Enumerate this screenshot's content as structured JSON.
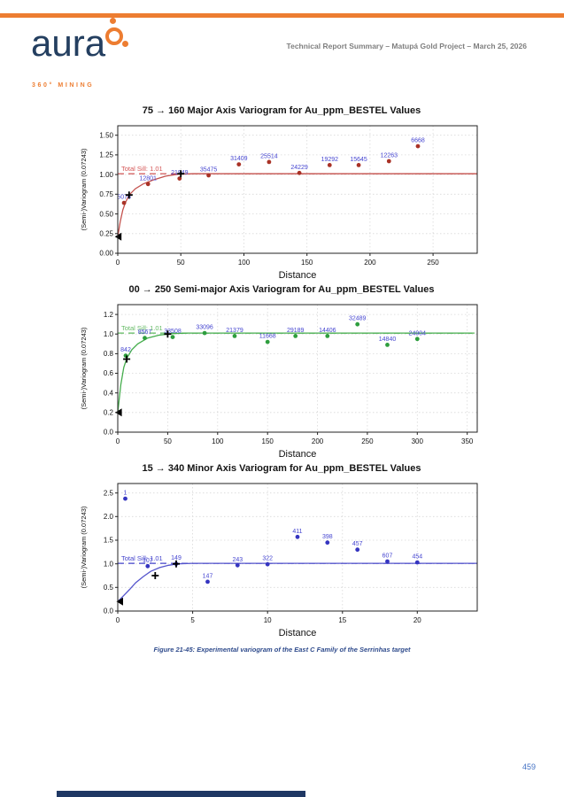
{
  "header": {
    "brand": "aura",
    "brand_sub": "360° MINING",
    "doc_title": "Technical Report Summary – Matupá Gold Project – March 25, 2026",
    "accent_color": "#ED7D31",
    "brand_color": "#243F60"
  },
  "chart_data": [
    {
      "type": "scatter",
      "title": "75 → 160 Major Axis Variogram for Au_ppm_BESTEL Values",
      "xlabel": "Distance",
      "ylabel": "(Semi-)Variogram (0.07243)",
      "xlim": [
        0,
        285
      ],
      "ylim": [
        0,
        1.62
      ],
      "xticks": [
        0,
        50,
        100,
        150,
        200,
        250
      ],
      "yticks": [
        0,
        0.25,
        0.5,
        0.75,
        1.0,
        1.25,
        1.5
      ],
      "ytick_labels": [
        "0.00",
        "0.25",
        "0.50",
        "0.75",
        "1.00",
        "1.25",
        "1.50"
      ],
      "grid": true,
      "sill": {
        "value": 1.01,
        "label": "Total Sill: 1.01"
      },
      "colors": {
        "point": "#A93226",
        "curve": "#C4524E",
        "sill_line": "#CC4444",
        "sill_text": "#D45555",
        "label": "#4545D0"
      },
      "points": [
        {
          "x": 5,
          "y": 0.64,
          "n": "5076"
        },
        {
          "x": 24,
          "y": 0.88,
          "n": "12801"
        },
        {
          "x": 49,
          "y": 0.95,
          "n": "21949"
        },
        {
          "x": 72,
          "y": 0.99,
          "n": "35475"
        },
        {
          "x": 96,
          "y": 1.13,
          "n": "31409"
        },
        {
          "x": 120,
          "y": 1.16,
          "n": "25514"
        },
        {
          "x": 144,
          "y": 1.02,
          "n": "24229"
        },
        {
          "x": 168,
          "y": 1.12,
          "n": "19292"
        },
        {
          "x": 191,
          "y": 1.12,
          "n": "15645"
        },
        {
          "x": 215,
          "y": 1.17,
          "n": "12263"
        },
        {
          "x": 238,
          "y": 1.36,
          "n": "6668"
        }
      ],
      "model": [
        [
          0,
          0.21
        ],
        [
          2,
          0.4
        ],
        [
          4,
          0.55
        ],
        [
          6,
          0.64
        ],
        [
          9,
          0.74
        ],
        [
          14,
          0.82
        ],
        [
          20,
          0.88
        ],
        [
          28,
          0.93
        ],
        [
          38,
          0.98
        ],
        [
          48,
          1.005
        ],
        [
          60,
          1.01
        ],
        [
          285,
          1.01
        ]
      ],
      "markers": [
        {
          "t": "tri",
          "x": 0.5,
          "y": 0.21
        },
        {
          "t": "plus",
          "x": 9,
          "y": 0.74
        },
        {
          "t": "plus",
          "x": 50,
          "y": 1.01
        }
      ]
    },
    {
      "type": "scatter",
      "title": "00 → 250 Semi-major Axis Variogram for Au_ppm_BESTEL Values",
      "xlabel": "Distance",
      "ylabel": "(Semi-)Variogram (0.07243)",
      "xlim": [
        0,
        360
      ],
      "ylim": [
        0,
        1.3
      ],
      "xticks": [
        0,
        50,
        100,
        150,
        200,
        250,
        300,
        350
      ],
      "yticks": [
        0,
        0.2,
        0.4,
        0.6,
        0.8,
        1.0,
        1.2
      ],
      "ytick_labels": [
        "0.0",
        "0.2",
        "0.4",
        "0.6",
        "0.8",
        "1.0",
        "1.2"
      ],
      "grid": true,
      "sill": {
        "value": 1.01,
        "label": "Total Sill: 1.01"
      },
      "colors": {
        "point": "#2E9E3E",
        "curve": "#44AD4C",
        "sill_line": "#5CB85C",
        "sill_text": "#66BB66",
        "label": "#4545D0"
      },
      "points": [
        {
          "x": 8,
          "y": 0.78,
          "n": "842"
        },
        {
          "x": 27,
          "y": 0.96,
          "n": "8567"
        },
        {
          "x": 55,
          "y": 0.97,
          "n": "33508"
        },
        {
          "x": 87,
          "y": 1.01,
          "n": "33096"
        },
        {
          "x": 117,
          "y": 0.98,
          "n": "21379"
        },
        {
          "x": 150,
          "y": 0.92,
          "n": "11668"
        },
        {
          "x": 178,
          "y": 0.98,
          "n": "29189"
        },
        {
          "x": 210,
          "y": 0.98,
          "n": "14406"
        },
        {
          "x": 240,
          "y": 1.1,
          "n": "32489"
        },
        {
          "x": 270,
          "y": 0.89,
          "n": "14840"
        },
        {
          "x": 300,
          "y": 0.95,
          "n": "24904"
        }
      ],
      "model": [
        [
          0,
          0.2
        ],
        [
          3,
          0.48
        ],
        [
          6,
          0.66
        ],
        [
          9,
          0.75
        ],
        [
          14,
          0.84
        ],
        [
          20,
          0.9
        ],
        [
          30,
          0.96
        ],
        [
          42,
          0.99
        ],
        [
          55,
          1.005
        ],
        [
          70,
          1.01
        ],
        [
          355,
          1.01
        ]
      ],
      "markers": [
        {
          "t": "tri",
          "x": 1,
          "y": 0.2
        },
        {
          "t": "plus",
          "x": 9,
          "y": 0.745
        },
        {
          "t": "plus",
          "x": 50,
          "y": 1.0
        }
      ]
    },
    {
      "type": "scatter",
      "title": "15 → 340 Minor Axis Variogram for Au_ppm_BESTEL Values",
      "xlabel": "Distance",
      "ylabel": "(Semi-)Variogram (0.07243)",
      "xlim": [
        0,
        24
      ],
      "ylim": [
        0,
        2.7
      ],
      "xticks": [
        0,
        5,
        10,
        15,
        20
      ],
      "yticks": [
        0,
        0.5,
        1.0,
        1.5,
        2.0,
        2.5
      ],
      "ytick_labels": [
        "0.0",
        "0.5",
        "1.0",
        "1.5",
        "2.0",
        "2.5"
      ],
      "grid": true,
      "sill": {
        "value": 1.01,
        "label": "Total Sill: 1.01"
      },
      "colors": {
        "point": "#3535C0",
        "curve": "#5555CC",
        "sill_line": "#4444CC",
        "sill_text": "#4444CC",
        "label": "#4545D0"
      },
      "points": [
        {
          "x": 0.5,
          "y": 2.38,
          "n": "1"
        },
        {
          "x": 2,
          "y": 0.95,
          "n": "107"
        },
        {
          "x": 3.9,
          "y": 1.0,
          "n": "149"
        },
        {
          "x": 6,
          "y": 0.62,
          "n": "147"
        },
        {
          "x": 8,
          "y": 0.97,
          "n": "243"
        },
        {
          "x": 10,
          "y": 0.99,
          "n": "322"
        },
        {
          "x": 12,
          "y": 1.57,
          "n": "411"
        },
        {
          "x": 14,
          "y": 1.45,
          "n": "398"
        },
        {
          "x": 16,
          "y": 1.3,
          "n": "457"
        },
        {
          "x": 18,
          "y": 1.05,
          "n": "607"
        },
        {
          "x": 20,
          "y": 1.03,
          "n": "454"
        }
      ],
      "model": [
        [
          0,
          0.2
        ],
        [
          0.4,
          0.33
        ],
        [
          0.8,
          0.46
        ],
        [
          1.2,
          0.6
        ],
        [
          1.7,
          0.73
        ],
        [
          2.2,
          0.84
        ],
        [
          2.8,
          0.92
        ],
        [
          3.4,
          0.97
        ],
        [
          4,
          1.0
        ],
        [
          5,
          1.01
        ],
        [
          24,
          1.01
        ]
      ],
      "markers": [
        {
          "t": "tri",
          "x": 0.15,
          "y": 0.2
        },
        {
          "t": "plus",
          "x": 2.5,
          "y": 0.75
        },
        {
          "t": "plus",
          "x": 3.9,
          "y": 1.0
        }
      ]
    }
  ],
  "caption": "Figure 21-45: Experimental variogram of the East C Family of the Serrinhas target",
  "page_number": "459",
  "footer_bar_color": "#1F3864"
}
